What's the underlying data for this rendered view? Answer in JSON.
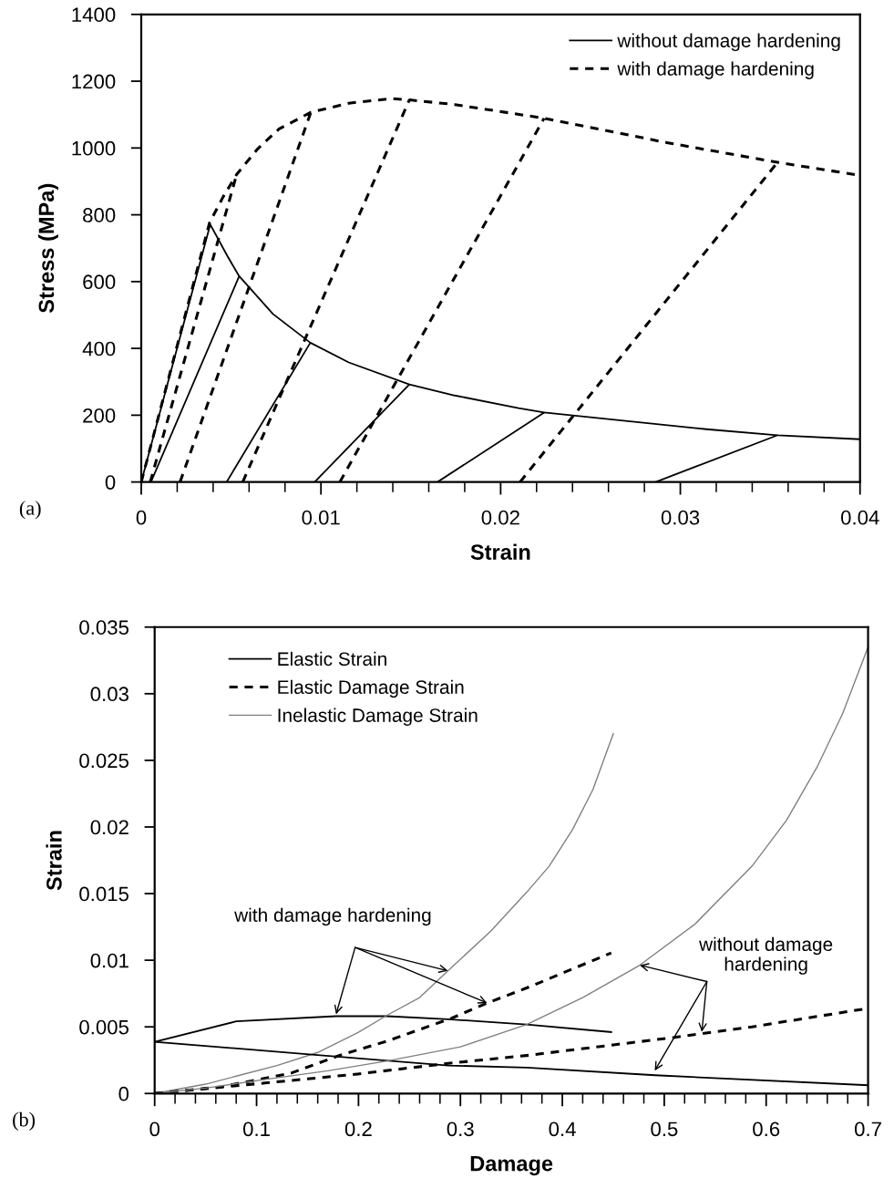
{
  "chart_data": [
    {
      "type": "line",
      "xlabel": "Strain",
      "ylabel": "Stress (MPa)",
      "xlim": [
        0,
        0.04
      ],
      "ylim": [
        0,
        1400
      ],
      "xticks": [
        0,
        0.01,
        0.02,
        0.03,
        0.04
      ],
      "yticks": [
        0,
        200,
        400,
        600,
        800,
        1000,
        1200,
        1400
      ],
      "grid": false,
      "legend": "top right",
      "marker": "none",
      "annotations": [
        "(a)"
      ],
      "series": [
        {
          "name": "without damage hardening",
          "color": "#000000",
          "line_style": "solid",
          "x": [
            0,
            0.00384,
            0.0048,
            0.00545,
            0.00733,
            0.00941,
            0.01155,
            0.01492,
            0.01745,
            0.021,
            0.02242,
            0.03145,
            0.03541,
            0.04,
            null,
            0.00054,
            0.00545,
            null,
            0.00475,
            0.00941,
            null,
            0.00965,
            0.01492,
            null,
            0.01649,
            0.02242,
            null,
            0.02863,
            0.03541
          ],
          "values": [
            0,
            771,
            676,
            616,
            503,
            417,
            358,
            292,
            259,
            221,
            208,
            158,
            140,
            128,
            null,
            0,
            616,
            null,
            0,
            417,
            null,
            0,
            292,
            null,
            0,
            208,
            null,
            0,
            140
          ]
        },
        {
          "name": "with damage hardening",
          "color": "#000000",
          "line_style": "dashed",
          "x": [
            0,
            0.0038,
            0.00455,
            0.00531,
            0.00649,
            0.00767,
            0.00944,
            0.01155,
            0.01391,
            0.01492,
            0.01745,
            0.02242,
            0.02925,
            0.03541,
            0.04,
            null,
            0.0005,
            0.00531,
            null,
            0.00216,
            0.00944,
            null,
            0.00565,
            0.01492,
            null,
            0.01105,
            0.02242,
            null,
            0.02108,
            0.03541
          ],
          "values": [
            0,
            776,
            853,
            921,
            998,
            1057,
            1107,
            1134,
            1148,
            1144,
            1130,
            1089,
            1016,
            957,
            918,
            null,
            0,
            921,
            null,
            0,
            1107,
            null,
            0,
            1144,
            null,
            0,
            1089,
            null,
            0,
            957
          ]
        }
      ]
    },
    {
      "type": "line",
      "xlabel": "Damage",
      "ylabel": "Strain",
      "xlim": [
        0,
        0.7
      ],
      "ylim": [
        0,
        0.035
      ],
      "xticks": [
        0,
        0.1,
        0.2,
        0.3,
        0.4,
        0.5,
        0.6,
        0.7
      ],
      "yticks": [
        0,
        0.005,
        0.01,
        0.015,
        0.02,
        0.025,
        0.03,
        0.035
      ],
      "grid": false,
      "legend": "top left",
      "marker": "none",
      "annotations": [
        "(b)",
        {
          "text": "with damage hardening",
          "x": 0.178,
          "y": 0.00594
        },
        {
          "text": "without damage\nhardening",
          "x": 0.476,
          "y": 0.00963
        }
      ],
      "series": [
        {
          "name": "Elastic Strain",
          "color": "#000000",
          "line_style": "solid",
          "x": [
            0,
            0.08,
            0.178,
            0.228,
            0.288,
            0.365,
            0.448
          ],
          "values": [
            0.00388,
            0.00541,
            0.0058,
            0.0058,
            0.00557,
            0.00518,
            0.00461
          ]
        },
        {
          "name": "Elastic Damage Strain",
          "color": "#000000",
          "line_style": "dashed",
          "x": [
            0,
            0.065,
            0.134,
            0.181,
            0.228,
            0.291,
            0.326,
            0.365,
            0.448
          ],
          "values": [
            0,
            0.0005,
            0.00153,
            0.00285,
            0.00393,
            0.00564,
            0.00678,
            0.00792,
            0.01055
          ]
        },
        {
          "name": "Inelastic Damage Strain",
          "color": "#808080",
          "line_style": "solid",
          "x": [
            0,
            0.05,
            0.08,
            0.12,
            0.16,
            0.2,
            0.228,
            0.26,
            0.288,
            0.33,
            0.365,
            0.387,
            0.41,
            0.43,
            0.45
          ],
          "values": [
            0,
            0.0007,
            0.0013,
            0.0021,
            0.00308,
            0.0046,
            0.00587,
            0.0072,
            0.00922,
            0.0122,
            0.0151,
            0.01705,
            0.0198,
            0.0228,
            0.027
          ]
        },
        {
          "color": "#000000",
          "line_style": "solid",
          "x": [
            0,
            0.157,
            0.288,
            0.365,
            0.491,
            0.7
          ],
          "values": [
            0.00388,
            0.0029,
            0.0021,
            0.00194,
            0.00137,
            0.00062
          ]
        },
        {
          "color": "#000000",
          "line_style": "dashed",
          "x": [
            0,
            0.11,
            0.199,
            0.288,
            0.365,
            0.509,
            0.586,
            0.7
          ],
          "values": [
            0,
            0.0008,
            0.00146,
            0.00226,
            0.00285,
            0.0042,
            0.005,
            0.00639
          ]
        },
        {
          "color": "#808080",
          "line_style": "solid",
          "x": [
            0,
            0.05,
            0.11,
            0.17,
            0.228,
            0.3,
            0.365,
            0.42,
            0.476,
            0.53,
            0.586,
            0.62,
            0.65,
            0.675,
            0.7
          ],
          "values": [
            0,
            0.0004,
            0.00107,
            0.0017,
            0.00244,
            0.0035,
            0.00518,
            0.0072,
            0.00963,
            0.0127,
            0.01705,
            0.0205,
            0.0245,
            0.0285,
            0.0335
          ]
        }
      ]
    }
  ]
}
